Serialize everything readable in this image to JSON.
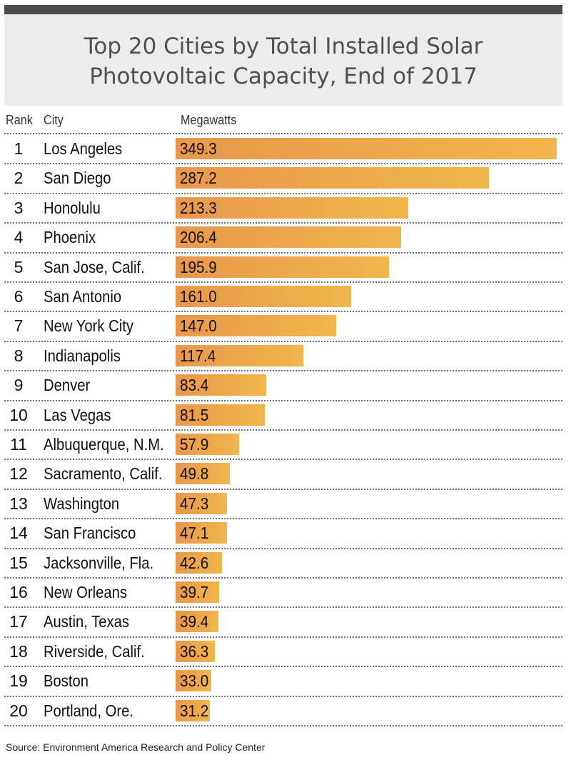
{
  "title_line1": "Top 20 Cities by Total Installed Solar",
  "title_line2": "Photovoltaic Capacity, End of 2017",
  "headers": {
    "rank": "Rank",
    "city": "City",
    "value": "Megawatts"
  },
  "source": "Source: Environment America Research and Policy Center",
  "colors": {
    "bar_start": "#e9974b",
    "bar_end": "#f0b64b",
    "header_bar": "#4b4b4d",
    "title_bg": "#ececec"
  },
  "chart_data": {
    "type": "bar",
    "orientation": "horizontal",
    "title": "Top 20 Cities by Total Installed Solar Photovoltaic Capacity, End of 2017",
    "xlabel": "Megawatts",
    "ylabel": "City",
    "xlim": [
      0,
      349.3
    ],
    "grid": false,
    "ranks": [
      "1",
      "2",
      "3",
      "4",
      "5",
      "6",
      "7",
      "8",
      "9",
      "10",
      "11",
      "12",
      "13",
      "14",
      "15",
      "16",
      "17",
      "18",
      "19",
      "20"
    ],
    "categories": [
      "Los Angeles",
      "San Diego",
      "Honolulu",
      "Phoenix",
      "San Jose, Calif.",
      "San Antonio",
      "New York City",
      "Indianapolis",
      "Denver",
      "Las Vegas",
      "Albuquerque, N.M.",
      "Sacramento, Calif.",
      "Washington",
      "San Francisco",
      "Jacksonville, Fla.",
      "New Orleans",
      "Austin, Texas",
      "Riverside, Calif.",
      "Boston",
      "Portland, Ore."
    ],
    "values": [
      349.3,
      287.2,
      213.3,
      206.4,
      195.9,
      161.0,
      147.0,
      117.4,
      83.4,
      81.5,
      57.9,
      49.8,
      47.3,
      47.1,
      42.6,
      39.7,
      39.4,
      36.3,
      33.0,
      31.2
    ],
    "value_labels": [
      "349.3",
      "287.2",
      "213.3",
      "206.4",
      "195.9",
      "161.0",
      "147.0",
      "117.4",
      "83.4",
      "81.5",
      "57.9",
      "49.8",
      "47.3",
      "47.1",
      "42.6",
      "39.7",
      "39.4",
      "36.3",
      "33.0",
      "31.2"
    ]
  }
}
